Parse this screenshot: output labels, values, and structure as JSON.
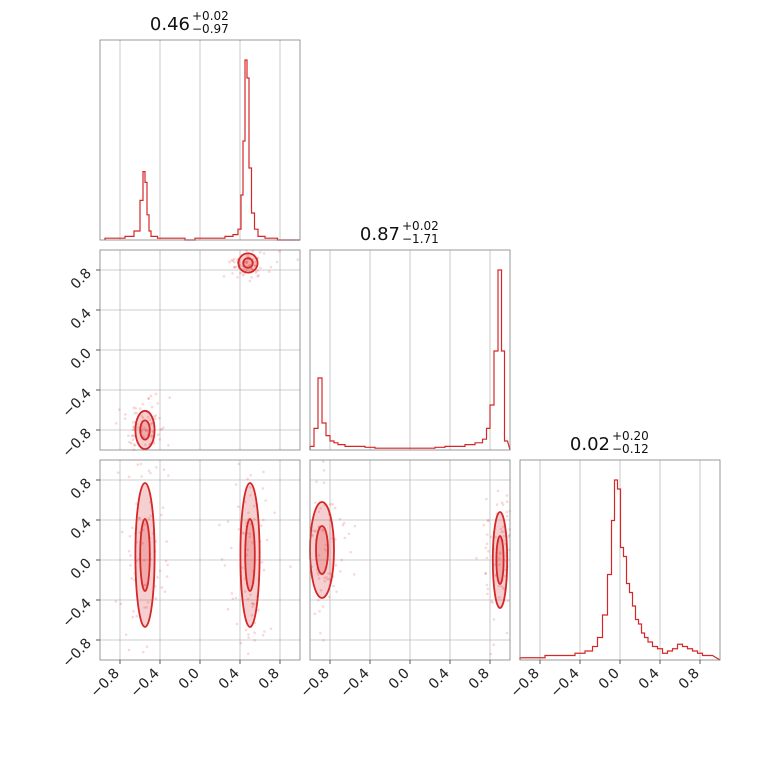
{
  "colors": {
    "accent": "#d62728",
    "grid": "#bcbcbc",
    "frame": "#7f7f7f"
  },
  "chart_data": {
    "type": "corner",
    "grid": true,
    "tick_values": [
      -0.8,
      -0.4,
      0.0,
      0.4,
      0.8
    ],
    "tick_labels": [
      "−0.8",
      "−0.4",
      "0.0",
      "0.4",
      "0.8"
    ],
    "range": [
      -1.0,
      1.0
    ],
    "parameters": [
      {
        "median": "0.46",
        "plus": "+0.02",
        "minus": "−0.97"
      },
      {
        "median": "0.87",
        "plus": "+0.02",
        "minus": "−1.71"
      },
      {
        "median": "0.02",
        "plus": "+0.20",
        "minus": "−0.12"
      }
    ],
    "marginals": [
      {
        "bin_edges": [
          -1.0,
          0.9
        ],
        "x": [
          -0.9,
          -0.8,
          -0.7,
          -0.62,
          -0.58,
          -0.56,
          -0.54,
          -0.52,
          -0.5,
          -0.48,
          -0.45,
          -0.4,
          -0.3,
          -0.2,
          -0.1,
          0.0,
          0.1,
          0.2,
          0.3,
          0.36,
          0.4,
          0.42,
          0.44,
          0.46,
          0.48,
          0.5,
          0.53,
          0.56,
          0.6,
          0.7,
          0.85
        ],
        "values": [
          0.01,
          0.01,
          0.02,
          0.05,
          0.22,
          0.38,
          0.32,
          0.14,
          0.05,
          0.02,
          0.02,
          0.01,
          0.01,
          0.01,
          0.0,
          0.01,
          0.01,
          0.01,
          0.02,
          0.03,
          0.06,
          0.25,
          0.55,
          1.0,
          0.9,
          0.4,
          0.15,
          0.06,
          0.02,
          0.01,
          0.0
        ]
      },
      {
        "x": [
          -0.98,
          -0.94,
          -0.9,
          -0.86,
          -0.82,
          -0.78,
          -0.74,
          -0.7,
          -0.6,
          -0.5,
          -0.4,
          -0.3,
          -0.2,
          -0.1,
          0.0,
          0.1,
          0.2,
          0.3,
          0.4,
          0.5,
          0.6,
          0.7,
          0.75,
          0.78,
          0.82,
          0.86,
          0.9,
          0.93,
          0.96
        ],
        "values": [
          0.02,
          0.12,
          0.4,
          0.15,
          0.08,
          0.05,
          0.04,
          0.03,
          0.02,
          0.02,
          0.015,
          0.01,
          0.01,
          0.01,
          0.01,
          0.01,
          0.01,
          0.015,
          0.02,
          0.02,
          0.03,
          0.04,
          0.06,
          0.12,
          0.25,
          0.55,
          1.0,
          0.55,
          0.05
        ]
      },
      {
        "x": [
          -0.95,
          -0.8,
          -0.7,
          -0.6,
          -0.5,
          -0.4,
          -0.3,
          -0.25,
          -0.2,
          -0.15,
          -0.1,
          -0.07,
          -0.04,
          -0.01,
          0.02,
          0.05,
          0.08,
          0.11,
          0.14,
          0.17,
          0.2,
          0.23,
          0.26,
          0.3,
          0.35,
          0.4,
          0.45,
          0.5,
          0.55,
          0.6,
          0.65,
          0.7,
          0.75,
          0.8,
          0.85,
          0.9
        ],
        "values": [
          0.01,
          0.01,
          0.02,
          0.02,
          0.02,
          0.03,
          0.04,
          0.06,
          0.1,
          0.2,
          0.38,
          0.62,
          0.8,
          0.76,
          0.5,
          0.46,
          0.34,
          0.3,
          0.24,
          0.18,
          0.16,
          0.12,
          0.1,
          0.08,
          0.06,
          0.05,
          0.03,
          0.04,
          0.05,
          0.07,
          0.06,
          0.05,
          0.04,
          0.03,
          0.02,
          0.02
        ]
      }
    ],
    "joints": [
      {
        "x_param": 0,
        "y_param": 1,
        "modes": [
          {
            "x": 0.48,
            "y": 0.87,
            "sx": 0.04,
            "sy": 0.04
          },
          {
            "x": -0.55,
            "y": -0.8,
            "sx": 0.04,
            "sy": 0.08
          }
        ]
      },
      {
        "x_param": 0,
        "y_param": 2,
        "modes": [
          {
            "x": -0.55,
            "y": 0.05,
            "sx": 0.04,
            "sy": 0.3
          },
          {
            "x": 0.5,
            "y": 0.05,
            "sx": 0.04,
            "sy": 0.3
          }
        ]
      },
      {
        "x_param": 1,
        "y_param": 2,
        "modes": [
          {
            "x": -0.88,
            "y": 0.1,
            "sx": 0.05,
            "sy": 0.2
          },
          {
            "x": 0.9,
            "y": 0.0,
            "sx": 0.03,
            "sy": 0.2
          }
        ]
      }
    ]
  }
}
